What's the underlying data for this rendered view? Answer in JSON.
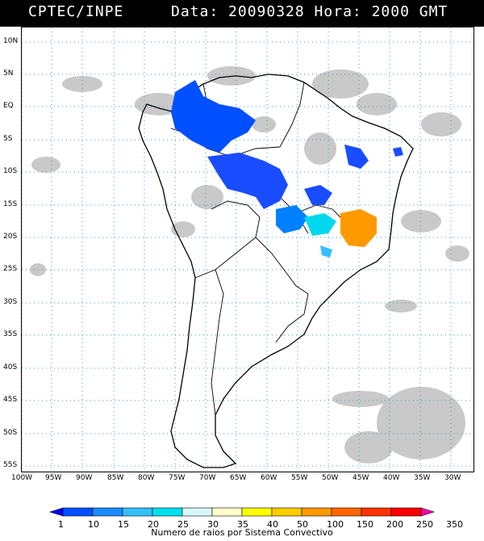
{
  "header": {
    "source": "CPTEC/INPE",
    "datetime": "Data: 20090328 Hora: 2000 GMT"
  },
  "map": {
    "lat_labels": [
      "10N",
      "5N",
      "EQ",
      "5S",
      "10S",
      "15S",
      "20S",
      "25S",
      "30S",
      "35S",
      "40S",
      "45S",
      "50S",
      "55S"
    ],
    "lon_labels": [
      "100W",
      "95W",
      "90W",
      "85W",
      "80W",
      "75W",
      "70W",
      "65W",
      "60W",
      "55W",
      "50W",
      "45W",
      "40W",
      "35W",
      "30W"
    ],
    "colors": {
      "cloud": "#c8c8c8",
      "coast": "#000000",
      "grid": "#3399cc"
    }
  },
  "legend": {
    "ticks": [
      "1",
      "10",
      "15",
      "20",
      "25",
      "30",
      "35",
      "40",
      "50",
      "100",
      "150",
      "200",
      "250",
      "350"
    ],
    "colors": [
      "#0000ff",
      "#0050ff",
      "#1a8cff",
      "#33c0ff",
      "#00e0f0",
      "#d8f8f8",
      "#ffffcc",
      "#ffff00",
      "#ffcc00",
      "#ff9900",
      "#ff6600",
      "#ff3300",
      "#ff0000",
      "#ff00aa"
    ],
    "caption": "Numero de raios por Sistema Convectivo"
  }
}
